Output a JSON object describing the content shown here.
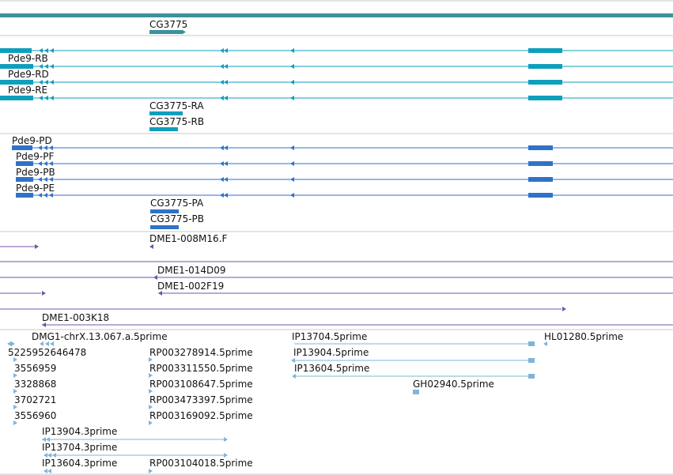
{
  "colors": {
    "top_band": "#3d9198",
    "gene": "#3d9198",
    "transcript_a": "#0f9fbd",
    "transcript_b": "#3072c8",
    "clone": "#7353aa",
    "est": "#7fb5d8",
    "separator": "#c8c8c8"
  },
  "tracks": {
    "gene_track": {
      "labels": [
        "CG3775"
      ]
    },
    "transcript_track_a": {
      "labels": [
        "Pde9-RB",
        "Pde9-RD",
        "Pde9-RE",
        "CG3775-RA",
        "CG3775-RB"
      ]
    },
    "transcript_track_b": {
      "labels": [
        "Pde9-PD",
        "Pde9-PF",
        "Pde9-PB",
        "Pde9-PE",
        "CG3775-PA",
        "CG3775-PB"
      ]
    },
    "clone_track": {
      "labels": [
        "DME1-008M16.F",
        "DME1-014D09",
        "DME1-002F19",
        "DME1-003K18"
      ]
    },
    "est_track": {
      "labels": [
        "DMG1-chrX.13.067.a.5prime",
        "IP13704.5prime",
        "HL01280.5prime",
        "5225952646478",
        "RP003278914.5prime",
        "IP13904.5prime",
        "3556959",
        "RP003311550.5prime",
        "IP13604.5prime",
        "3328868",
        "RP003108647.5prime",
        "GH02940.5prime",
        "3702721",
        "RP003473397.5prime",
        "3556960",
        "RP003169092.5prime",
        "IP13904.3prime",
        "IP13704.3prime",
        "IP13604.3prime",
        "RP003104018.5prime"
      ]
    }
  }
}
